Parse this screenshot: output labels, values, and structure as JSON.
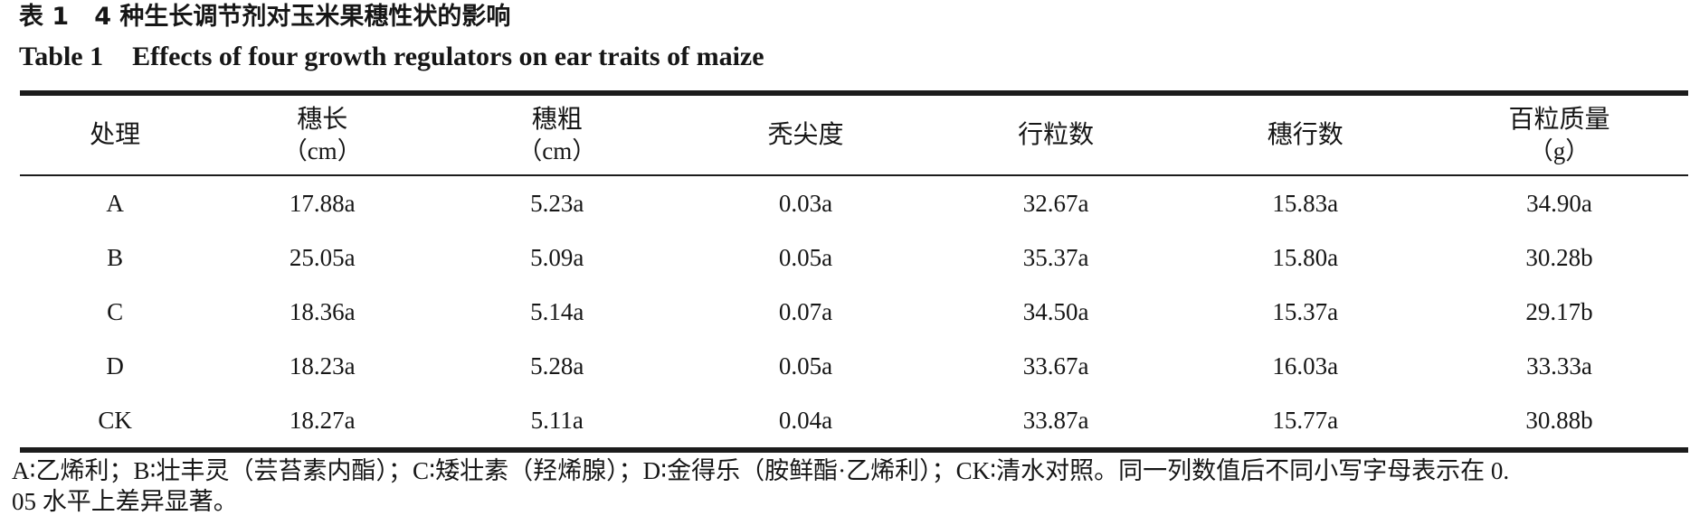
{
  "titles": {
    "cn_label": "表 1",
    "cn_text": "4 种生长调节剂对玉米果穗性状的影响",
    "en_label": "Table 1",
    "en_text": "Effects of four growth regulators on ear traits of maize"
  },
  "table": {
    "columns": [
      {
        "label": "处理",
        "unit": ""
      },
      {
        "label": "穗长",
        "unit": "（cm）"
      },
      {
        "label": "穗粗",
        "unit": "（cm）"
      },
      {
        "label": "秃尖度",
        "unit": ""
      },
      {
        "label": "行粒数",
        "unit": ""
      },
      {
        "label": "穗行数",
        "unit": ""
      },
      {
        "label": "百粒质量",
        "unit": "（g）"
      }
    ],
    "rows": [
      [
        "A",
        "17.88a",
        "5.23a",
        "0.03a",
        "32.67a",
        "15.83a",
        "34.90a"
      ],
      [
        "B",
        "25.05a",
        "5.09a",
        "0.05a",
        "35.37a",
        "15.80a",
        "30.28b"
      ],
      [
        "C",
        "18.36a",
        "5.14a",
        "0.07a",
        "34.50a",
        "15.37a",
        "29.17b"
      ],
      [
        "D",
        "18.23a",
        "5.28a",
        "0.05a",
        "33.67a",
        "16.03a",
        "33.33a"
      ],
      [
        "CK",
        "18.27a",
        "5.11a",
        "0.04a",
        "33.87a",
        "15.77a",
        "30.88b"
      ]
    ]
  },
  "footnote": {
    "line1": "A∶乙烯利；B∶壮丰灵（芸苔素内酯）；C∶矮壮素（羟烯腺）；D∶金得乐（胺鲜酯·乙烯利）；CK∶清水对照。同一列数值后不同小写字母表示在 0.",
    "line2": "05 水平上差异显著。"
  },
  "colors": {
    "background": "#ffffff",
    "text": "#161616",
    "rule": "#1c1c1c"
  }
}
